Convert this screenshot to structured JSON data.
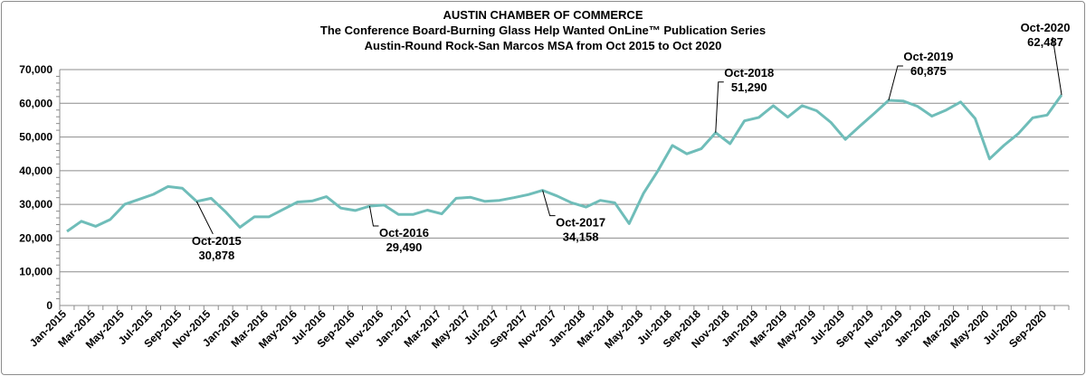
{
  "chart_data": {
    "type": "line",
    "title": [
      "AUSTIN CHAMBER OF COMMERCE",
      "The Conference Board-Burning Glass Help Wanted OnLine™ Publication Series",
      "Austin-Round Rock-San Marcos MSA from Oct 2015 to Oct 2020"
    ],
    "xlabel": "",
    "ylabel": "",
    "ylim": [
      0,
      70000
    ],
    "yticks": [
      "0",
      "10,000",
      "20,000",
      "30,000",
      "40,000",
      "50,000",
      "60,000",
      "70,000"
    ],
    "ytick_values": [
      0,
      10000,
      20000,
      30000,
      40000,
      50000,
      60000,
      70000
    ],
    "grid": true,
    "legend": "none",
    "series_color": "#6fbdb9",
    "x": [
      "Jan-2015",
      "Feb-2015",
      "Mar-2015",
      "Apr-2015",
      "May-2015",
      "Jun-2015",
      "Jul-2015",
      "Aug-2015",
      "Sep-2015",
      "Oct-2015",
      "Nov-2015",
      "Dec-2015",
      "Jan-2016",
      "Feb-2016",
      "Mar-2016",
      "Apr-2016",
      "May-2016",
      "Jun-2016",
      "Jul-2016",
      "Aug-2016",
      "Sep-2016",
      "Oct-2016",
      "Nov-2016",
      "Dec-2016",
      "Jan-2017",
      "Feb-2017",
      "Mar-2017",
      "Apr-2017",
      "May-2017",
      "Jun-2017",
      "Jul-2017",
      "Aug-2017",
      "Sep-2017",
      "Oct-2017",
      "Nov-2017",
      "Dec-2017",
      "Jan-2018",
      "Feb-2018",
      "Mar-2018",
      "Apr-2018",
      "May-2018",
      "Jun-2018",
      "Jul-2018",
      "Aug-2018",
      "Sep-2018",
      "Oct-2018",
      "Nov-2018",
      "Dec-2018",
      "Jan-2019",
      "Feb-2019",
      "Mar-2019",
      "Apr-2019",
      "May-2019",
      "Jun-2019",
      "Jul-2019",
      "Aug-2019",
      "Sep-2019",
      "Oct-2019",
      "Nov-2019",
      "Dec-2019",
      "Jan-2020",
      "Feb-2020",
      "Mar-2020",
      "Apr-2020",
      "May-2020",
      "Jun-2020",
      "Jul-2020",
      "Aug-2020",
      "Sep-2020",
      "Oct-2020"
    ],
    "values": [
      22000,
      25000,
      23500,
      25500,
      30000,
      31500,
      33000,
      35300,
      34800,
      30878,
      31800,
      27800,
      23200,
      26300,
      26300,
      28500,
      30700,
      31000,
      32300,
      28900,
      28200,
      29490,
      29800,
      27000,
      27000,
      28300,
      27200,
      31800,
      32100,
      30900,
      31200,
      32000,
      32900,
      34158,
      32500,
      30500,
      29200,
      31200,
      30500,
      24300,
      33300,
      40000,
      47500,
      45000,
      46500,
      51290,
      48000,
      54800,
      55800,
      59300,
      55900,
      59300,
      57800,
      54300,
      49300,
      53200,
      57000,
      60875,
      60700,
      59100,
      56200,
      58000,
      60400,
      55500,
      43500,
      47500,
      51000,
      55700,
      56500,
      62487
    ],
    "annotations": [
      {
        "x": "Oct-2015",
        "label": "Oct-2015",
        "value": "30,878",
        "side": "below"
      },
      {
        "x": "Oct-2016",
        "label": "Oct-2016",
        "value": "29,490",
        "side": "below"
      },
      {
        "x": "Oct-2017",
        "label": "Oct-2017",
        "value": "34,158",
        "side": "below"
      },
      {
        "x": "Oct-2018",
        "label": "Oct-2018",
        "value": "51,290",
        "side": "above"
      },
      {
        "x": "Oct-2019",
        "label": "Oct-2019",
        "value": "60,875",
        "side": "above"
      },
      {
        "x": "Oct-2020",
        "label": "Oct-2020",
        "value": "62,487",
        "side": "above"
      }
    ]
  }
}
